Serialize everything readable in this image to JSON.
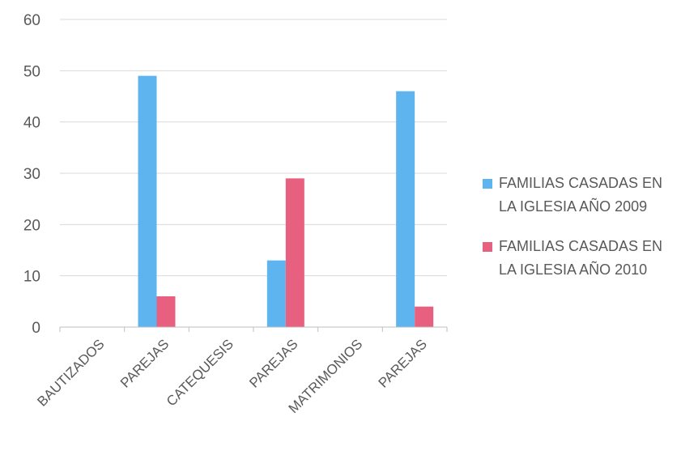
{
  "chart_data": {
    "type": "bar",
    "title": "",
    "xlabel": "",
    "ylabel": "",
    "categories": [
      "BAUTIZADOS",
      "PAREJAS",
      "CATEQUESIS",
      "PAREJAS",
      "MATRIMONIOS",
      "PAREJAS"
    ],
    "series": [
      {
        "name": "FAMILIAS CASADAS EN LA IGLESIA AÑO 2009",
        "name_lines": [
          "FAMILIAS CASADAS EN",
          "LA IGLESIA AÑO 2009"
        ],
        "color": "#5db4ee",
        "values": [
          null,
          49,
          null,
          13,
          null,
          46
        ]
      },
      {
        "name": "FAMILIAS CASADAS EN LA IGLESIA AÑO 2010",
        "name_lines": [
          "FAMILIAS CASADAS EN",
          "LA IGLESIA AÑO 2010"
        ],
        "color": "#e8607f",
        "values": [
          null,
          6,
          null,
          29,
          null,
          4
        ]
      }
    ],
    "ylim": [
      0,
      60
    ],
    "yticks": [
      0,
      10,
      20,
      30,
      40,
      50,
      60
    ],
    "grid": true,
    "legend": "right"
  }
}
